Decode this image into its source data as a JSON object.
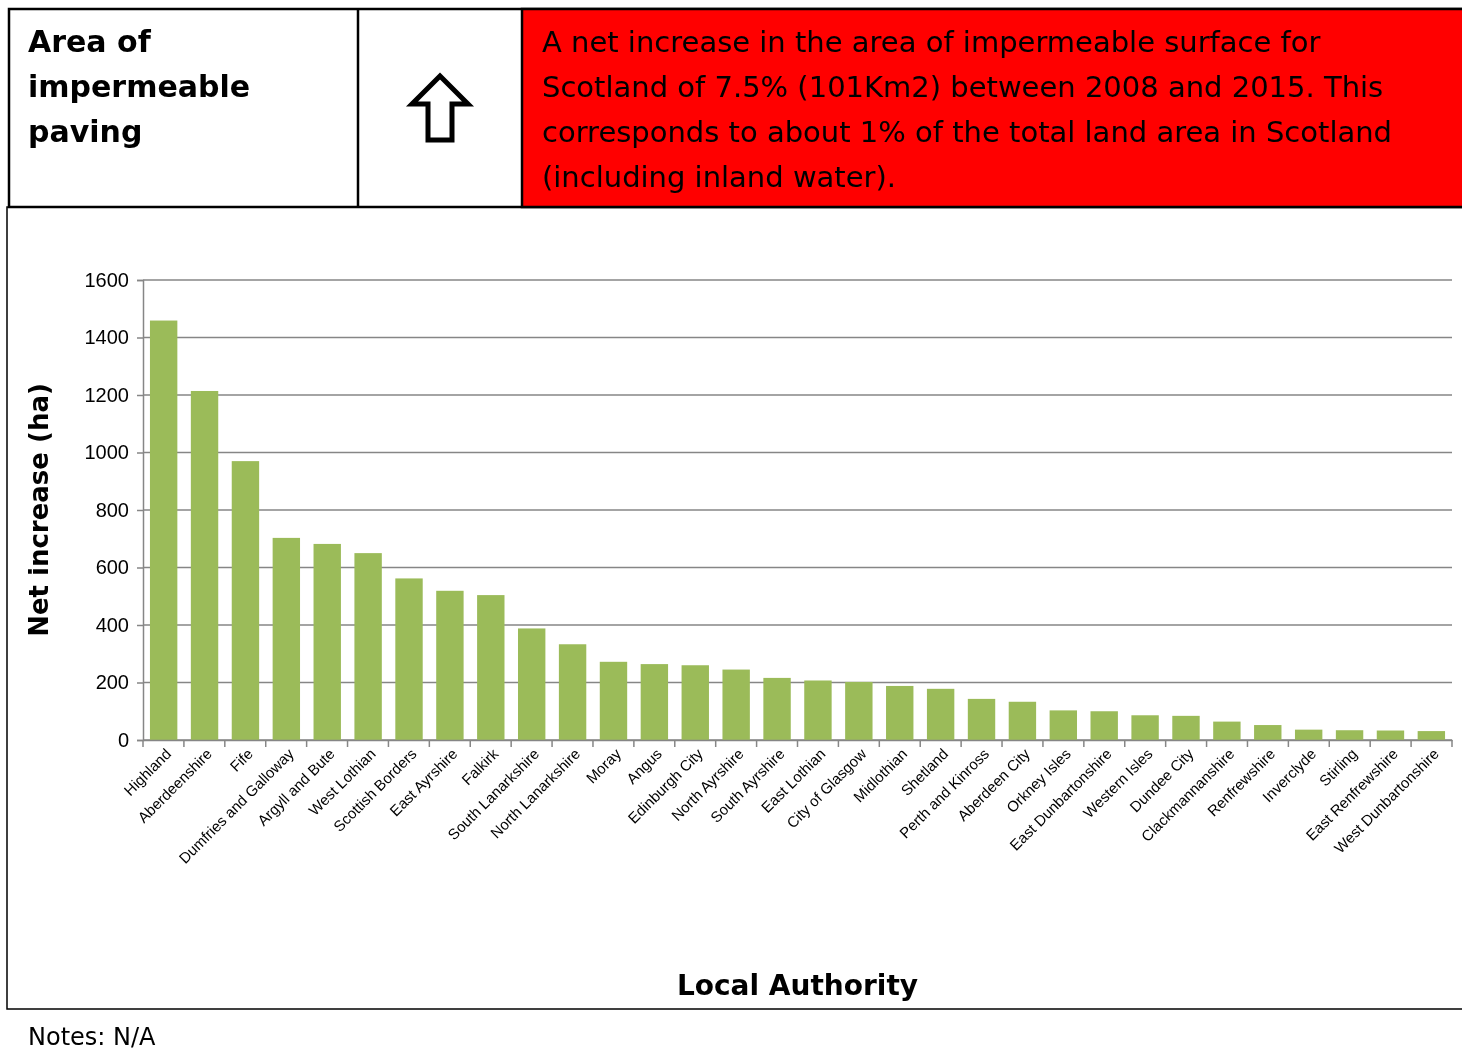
{
  "chart_data": {
    "type": "bar",
    "title": "Area of impermeable paving",
    "subtitle": "A net increase in the area of impermeable surface for Scotland of 7.5% (101Km2) between 2008 and 2015. This corresponds to about 1% of the total land area in Scotland (including inland water).",
    "xlabel": "Local Authority",
    "ylabel": "Net increase (ha)",
    "categories": [
      "Highland",
      "Aberdeenshire",
      "Fife",
      "Dumfries and Galloway",
      "Argyll and Bute",
      "West Lothian",
      "Scottish Borders",
      "East Ayrshire",
      "Falkirk",
      "South Lanarkshire",
      "North Lanarkshire",
      "Moray",
      "Angus",
      "Edinburgh City",
      "North Ayrshire",
      "South Ayrshire",
      "East Lothian",
      "City of Glasgow",
      "Midlothian",
      "Shetland",
      "Perth and Kinross",
      "Aberdeen City",
      "Orkney Isles",
      "East Dunbartonshire",
      "Western Isles",
      "Dundee City",
      "Clackmannanshire",
      "Renfrewshire",
      "Inverclyde",
      "Stirling",
      "East Renfrewshire",
      "West Dunbartonshire"
    ],
    "values": [
      1459,
      1214,
      970,
      703,
      682,
      650,
      562,
      519,
      504,
      388,
      333,
      272,
      264,
      260,
      245,
      216,
      207,
      202,
      188,
      178,
      143,
      133,
      103,
      100,
      86,
      84,
      64,
      52,
      36,
      34,
      33,
      31
    ],
    "color": "#9bbb59",
    "ylim": [
      0,
      1600
    ],
    "yticks": [
      0,
      200,
      400,
      600,
      800,
      1000,
      1200,
      1400,
      1600
    ],
    "grid": "y",
    "annotations": [
      "Notes: N/A"
    ]
  }
}
